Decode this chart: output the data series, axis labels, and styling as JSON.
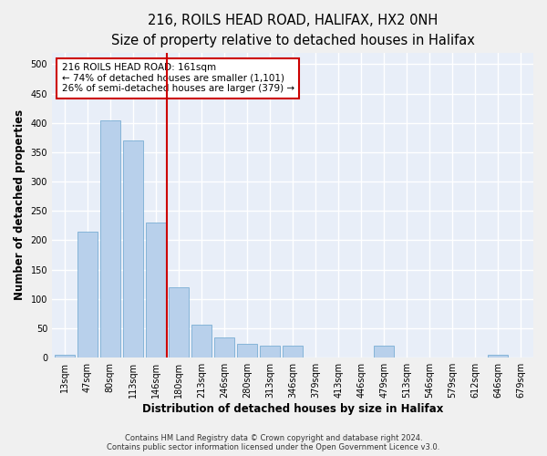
{
  "title_line1": "216, ROILS HEAD ROAD, HALIFAX, HX2 0NH",
  "title_line2": "Size of property relative to detached houses in Halifax",
  "xlabel": "Distribution of detached houses by size in Halifax",
  "ylabel": "Number of detached properties",
  "bar_labels": [
    "13sqm",
    "47sqm",
    "80sqm",
    "113sqm",
    "146sqm",
    "180sqm",
    "213sqm",
    "246sqm",
    "280sqm",
    "313sqm",
    "346sqm",
    "379sqm",
    "413sqm",
    "446sqm",
    "479sqm",
    "513sqm",
    "546sqm",
    "579sqm",
    "612sqm",
    "646sqm",
    "679sqm"
  ],
  "bar_values": [
    5,
    215,
    405,
    370,
    230,
    120,
    57,
    35,
    23,
    20,
    20,
    0,
    0,
    0,
    20,
    0,
    0,
    0,
    0,
    5,
    0
  ],
  "bar_color": "#b8d0eb",
  "bar_edge_color": "#7aaed4",
  "vline_color": "#cc0000",
  "annotation_title": "216 ROILS HEAD ROAD: 161sqm",
  "annotation_line1": "← 74% of detached houses are smaller (1,101)",
  "annotation_line2": "26% of semi-detached houses are larger (379) →",
  "annotation_box_color": "#ffffff",
  "annotation_box_edge": "#cc0000",
  "ylim": [
    0,
    520
  ],
  "yticks": [
    0,
    50,
    100,
    150,
    200,
    250,
    300,
    350,
    400,
    450,
    500
  ],
  "background_color": "#e8eef8",
  "grid_color": "#ffffff",
  "footer_line1": "Contains HM Land Registry data © Crown copyright and database right 2024.",
  "footer_line2": "Contains public sector information licensed under the Open Government Licence v3.0.",
  "title_fontsize": 10.5,
  "subtitle_fontsize": 9.5,
  "axis_label_fontsize": 8.5,
  "tick_fontsize": 7,
  "annotation_fontsize": 7.5,
  "footer_fontsize": 6,
  "fig_bg": "#f0f0f0"
}
